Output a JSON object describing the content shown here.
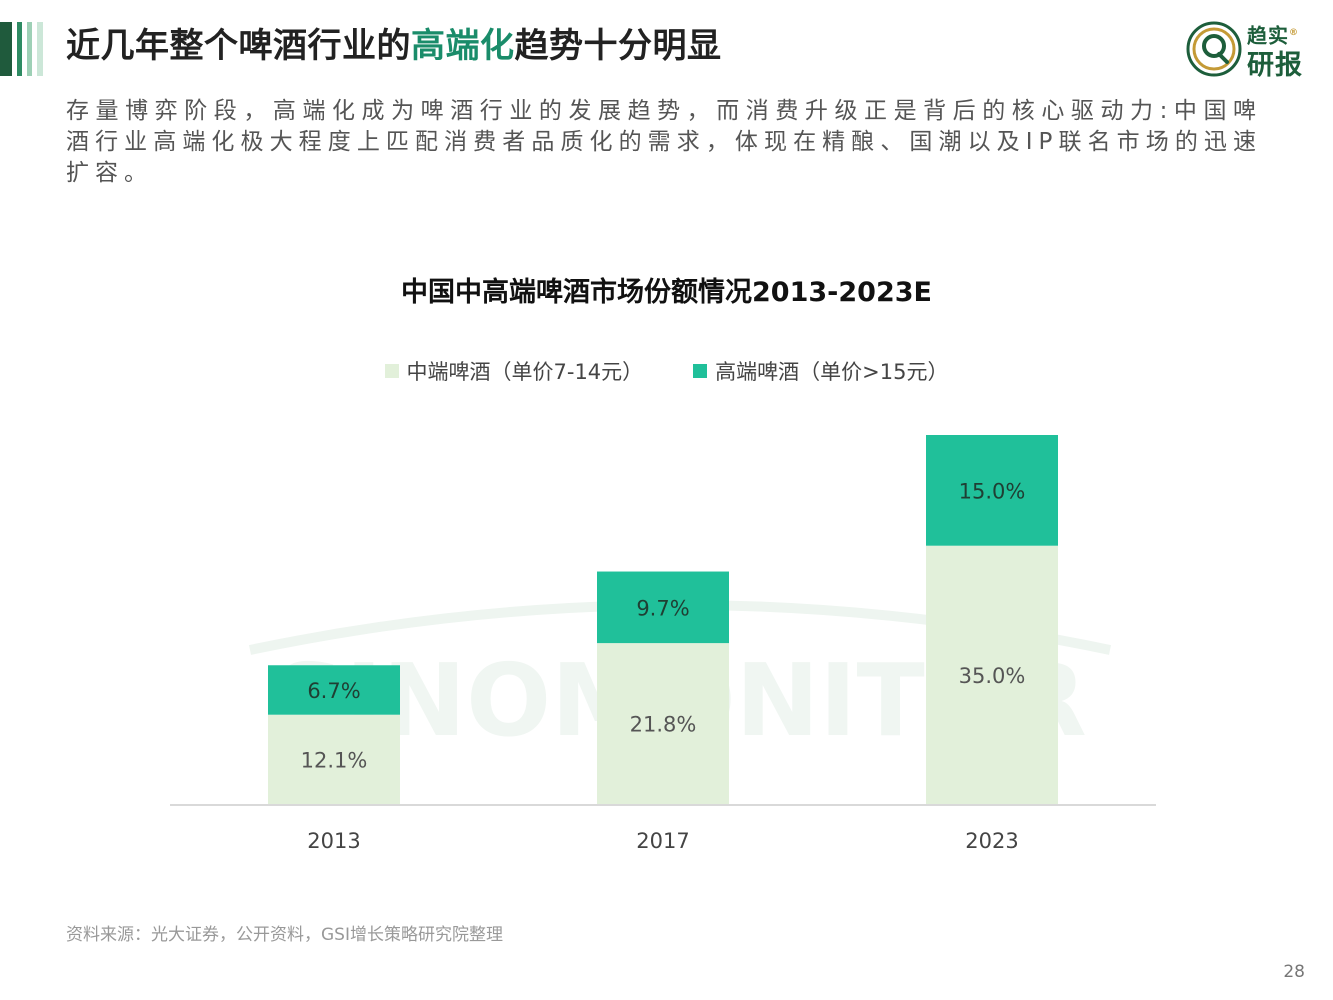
{
  "header": {
    "title_prefix": "近几年整个啤酒行业的",
    "title_highlight": "高端化",
    "title_suffix": "趋势十分明显",
    "accent_bars": [
      "#1f5a3c",
      "#2e8b63",
      "#9ed0b6",
      "#cce7d8"
    ]
  },
  "logo": {
    "line1": "趋实",
    "mark": "®",
    "line2": "研报",
    "icon": "q-logo-icon"
  },
  "paragraph": "存量博弈阶段，高端化成为啤酒行业的发展趋势，而消费升级正是背后的核心驱动力:中国啤酒行业高端化极大程度上匹配消费者品质化的需求，体现在精酿、国潮以及IP联名市场的迅速扩容。",
  "watermark": "SINOMONITOR",
  "chart_data": {
    "type": "bar",
    "stacked": true,
    "title": "中国中高端啤酒市场份额情况2013-2023E",
    "categories": [
      "2013",
      "2017",
      "2023"
    ],
    "series": [
      {
        "name": "中端啤酒（单价7-14元）",
        "values": [
          12.1,
          21.8,
          35.0
        ],
        "labels": [
          "12.1%",
          "21.8%",
          "35.0%"
        ],
        "color": "#e2f0da"
      },
      {
        "name": "高端啤酒（单价>15元）",
        "values": [
          6.7,
          9.7,
          15.0
        ],
        "labels": [
          "6.7%",
          "9.7%",
          "15.0%"
        ],
        "color": "#20c09a"
      }
    ],
    "ylim": [
      0,
      50
    ],
    "grid": false,
    "legend_position": "top"
  },
  "footer": {
    "source": "资料来源：光大证券，公开资料，GSI增长策略研究院整理",
    "page": "28"
  }
}
